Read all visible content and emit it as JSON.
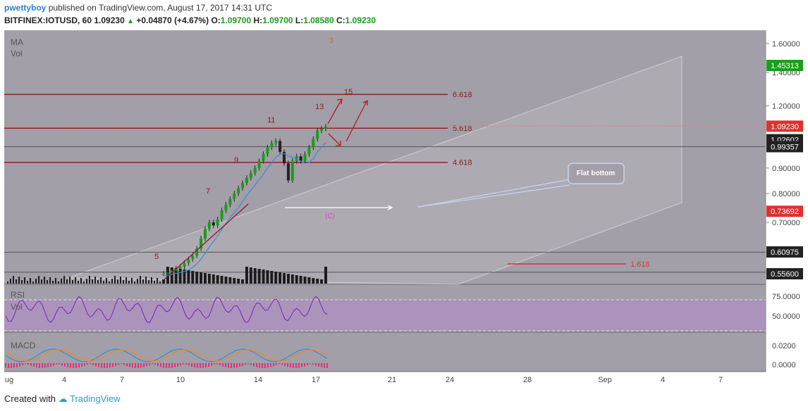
{
  "header": {
    "author": "pwettyboy",
    "published_text": "published on TradingView.com, August 17, 2017 14:31 UTC",
    "symbol_line": "BITFINEX:IOTUSD, 60",
    "last": "1.09230",
    "change": "+0.04870 (+4.67%)",
    "o_label": "O:",
    "o": "1.09700",
    "h_label": "H:",
    "h": "1.09700",
    "l_label": "L:",
    "l": "1.08580",
    "c_label": "C:",
    "c": "1.09230"
  },
  "footer": {
    "created_with": "Created with",
    "brand": "TradingView"
  },
  "colors": {
    "panel_bg": "#a29fa8",
    "rsi_band": "#b08ec4",
    "fib_line": "#8b1a1a",
    "price_up": "#1a9c1a",
    "price_badge": "#e03030",
    "ma_line": "#2f8fd6",
    "macd_line": "#e88b2f",
    "macd_hist": "#e0307a"
  },
  "chart_data": {
    "type": "candlestick",
    "indicators": [
      "MA",
      "Vol"
    ],
    "price_axis": {
      "ylim": [
        0.51,
        1.66
      ],
      "ticks": [
        "1.60000",
        "1.40000",
        "1.20000",
        "0.90000",
        "0.80000",
        "0.70000"
      ]
    },
    "price_badges": [
      {
        "label": "1.45313",
        "value": 1.45313,
        "color": "#1f9c1f"
      },
      {
        "label": "1.09230",
        "value": 1.0923,
        "color": "#e03030"
      },
      {
        "label": "1.02602",
        "value": 1.02602,
        "color": "#222222"
      },
      {
        "label": "0.99357",
        "value": 0.99357,
        "color": "#222222"
      },
      {
        "label": "0.73692",
        "value": 0.73692,
        "color": "#e03030"
      },
      {
        "label": "0.60975",
        "value": 0.60975,
        "color": "#222222"
      },
      {
        "label": "0.55600",
        "value": 0.556,
        "color": "#222222"
      }
    ],
    "fib_levels": [
      {
        "label": "6.618",
        "value": 1.265
      },
      {
        "label": "5.618",
        "value": 1.082
      },
      {
        "label": "4.618",
        "value": 0.924
      }
    ],
    "extra_level": {
      "label": "1.618",
      "value": 0.589
    },
    "horizontal_lines": [
      0.99357,
      0.60975,
      0.556
    ],
    "wave_labels": [
      "3",
      "5",
      "7",
      "9",
      "11",
      "13",
      "15",
      "(C)"
    ],
    "callout": "Flat bottom",
    "x_ticks": [
      "ug",
      "4",
      "7",
      "10",
      "14",
      "17",
      "21",
      "24",
      "28",
      "Sep",
      "4",
      "7"
    ],
    "rsi": {
      "label": "RSI",
      "sub": "Vol",
      "ticks": [
        "75.0000",
        "50.0000"
      ]
    },
    "macd": {
      "label": "MACD",
      "ticks": [
        "0.0200",
        "0.0000"
      ]
    },
    "price_series": {
      "description_ohlc_close": [
        0.553,
        0.555,
        0.56,
        0.565,
        0.57,
        0.58,
        0.59,
        0.6,
        0.62,
        0.65,
        0.68,
        0.7,
        0.69,
        0.71,
        0.74,
        0.76,
        0.78,
        0.8,
        0.82,
        0.84,
        0.86,
        0.88,
        0.9,
        0.93,
        0.96,
        0.99,
        1.01,
        1.02,
        0.97,
        0.92,
        0.85,
        0.93,
        0.95,
        0.93,
        0.96,
        0.99,
        1.03,
        1.07,
        1.08,
        1.09
      ]
    }
  }
}
